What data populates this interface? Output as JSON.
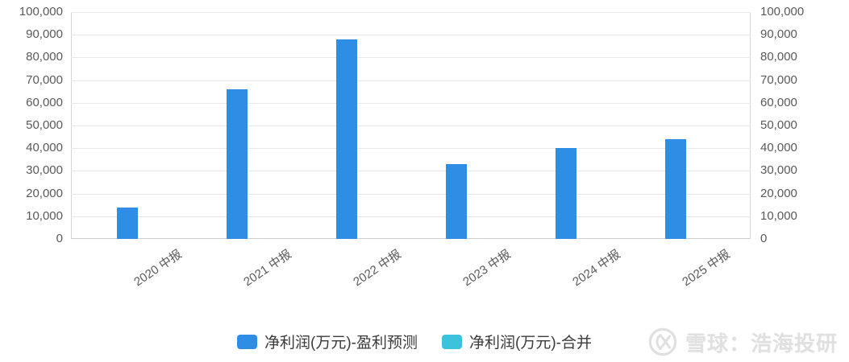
{
  "chart_data": {
    "type": "bar",
    "title": "",
    "categories": [
      "2020 中报",
      "2021 中报",
      "2022 中报",
      "2023 中报",
      "2024 中报",
      "2025 中报"
    ],
    "series": [
      {
        "name": "净利润(万元)-盈利预测",
        "color": "#2f8de6",
        "values": [
          14000,
          66000,
          88000,
          33000,
          40000,
          44000
        ]
      },
      {
        "name": "净利润(万元)-合并",
        "color": "#3cc3dc",
        "values": [
          null,
          null,
          null,
          null,
          null,
          null
        ]
      }
    ],
    "xlabel": "",
    "ylabel": "",
    "ylim": [
      0,
      100000
    ],
    "ytick_step": 10000,
    "ytick_labels": [
      "0",
      "10,000",
      "20,000",
      "30,000",
      "40,000",
      "50,000",
      "60,000",
      "70,000",
      "80,000",
      "90,000",
      "100,000"
    ],
    "y_axis_sides": [
      "left",
      "right"
    ],
    "grid": true,
    "legend_position": "bottom-center"
  },
  "legend": {
    "items": [
      {
        "label": "净利润(万元)-盈利预测",
        "color": "#2f8de6"
      },
      {
        "label": "净利润(万元)-合并",
        "color": "#3cc3dc"
      }
    ]
  },
  "watermark": {
    "logo": "xueqiu-logo",
    "text": "雪球：浩海投研"
  },
  "colors": {
    "bar_blue": "#2f8de6",
    "legend_cyan": "#3cc3dc",
    "axis_text": "#595959",
    "gridline": "#e8e8e8",
    "watermark_gray": "#e0e0e0"
  }
}
